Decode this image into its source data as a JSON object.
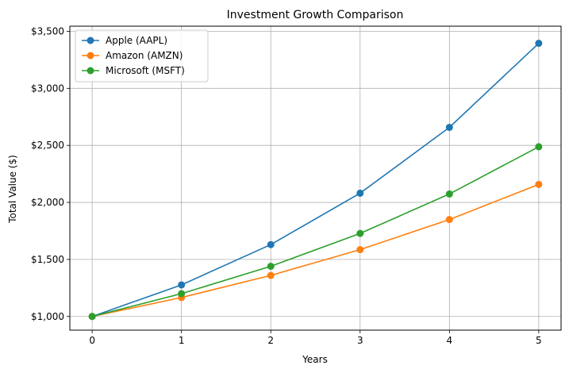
{
  "chart_data": {
    "type": "line",
    "title": "Investment Growth Comparison",
    "xlabel": "Years",
    "ylabel": "Total Value ($)",
    "x": [
      0,
      1,
      2,
      3,
      4,
      5
    ],
    "xticks": [
      "0",
      "1",
      "2",
      "3",
      "4",
      "5"
    ],
    "xlim": [
      -0.25,
      5.25
    ],
    "ylim": [
      880,
      3545
    ],
    "yticks": [
      1000,
      1500,
      2000,
      2500,
      3000,
      3500
    ],
    "ytick_labels": [
      "$1,000",
      "$1,500",
      "$2,000",
      "$2,500",
      "$3,000",
      "$3,500"
    ],
    "grid": true,
    "legend_position": "top-left",
    "series": [
      {
        "name": "Apple (AAPL)",
        "color": "#1f77b4",
        "values": [
          1000,
          1277,
          1630,
          2081,
          2658,
          3395
        ]
      },
      {
        "name": "Amazon (AMZN)",
        "color": "#ff7f0e",
        "values": [
          1000,
          1166,
          1360,
          1586,
          1850,
          2158
        ]
      },
      {
        "name": "Microsoft (MSFT)",
        "color": "#2ca02c",
        "values": [
          1000,
          1200,
          1440,
          1728,
          2074,
          2488
        ]
      }
    ]
  }
}
